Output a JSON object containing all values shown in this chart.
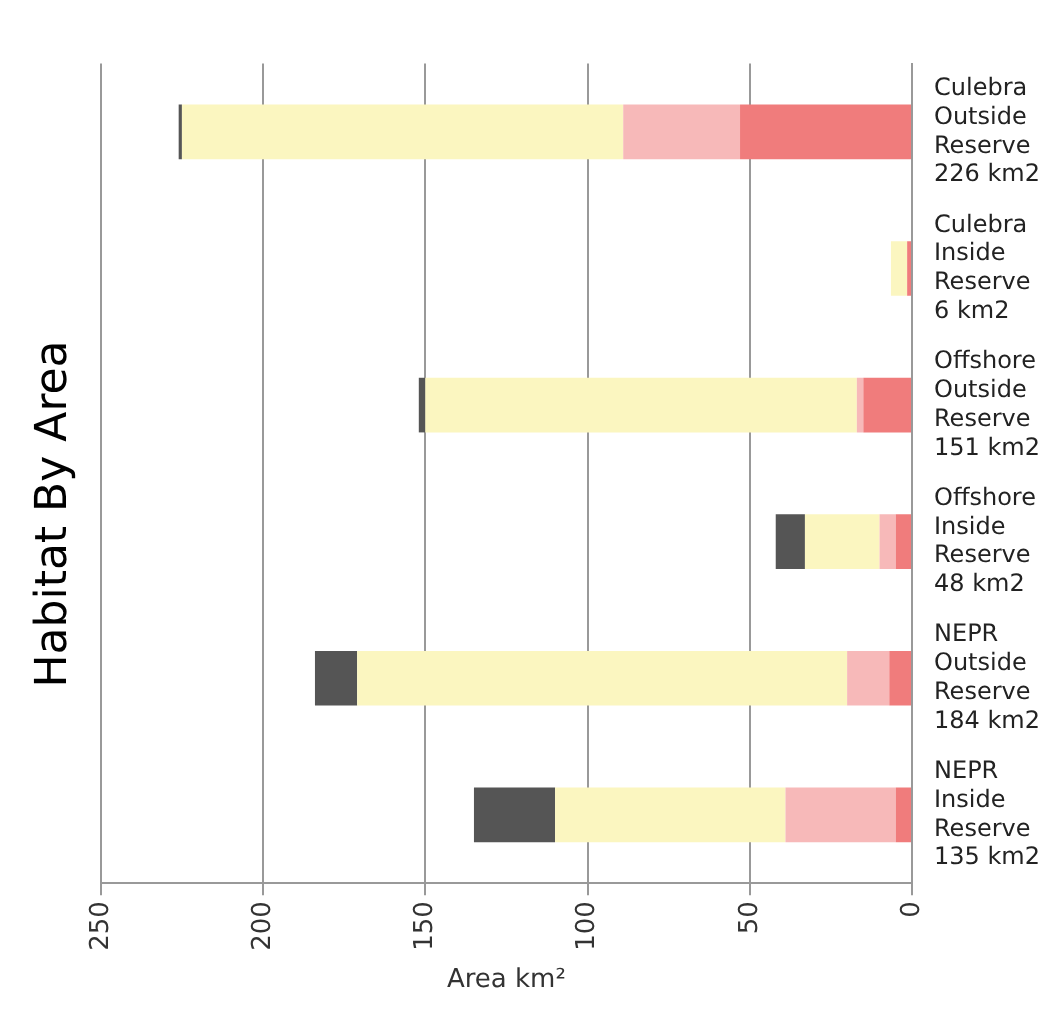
{
  "chart_data": {
    "type": "bar",
    "orientation": "horizontal",
    "stacked": true,
    "title": "Habitat By Area",
    "xlabel": "Area km²",
    "categories": [
      "Culebra Outside Reserve 226 km2",
      "Culebra Inside Reserve 6 km2",
      "Offshore Outside Reserve 151 km2",
      "Offshore Inside Reserve 48 km2",
      "NEPR Outside Reserve 184 km2",
      "NEPR Inside Reserve 135 km2"
    ],
    "series": [
      {
        "color": "#f07c7c",
        "values": [
          53,
          1.5,
          15,
          5,
          7,
          5
        ]
      },
      {
        "color": "#f7b9b9",
        "values": [
          36,
          0,
          2,
          5,
          13,
          34
        ]
      },
      {
        "color": "#fbf6c0",
        "values": [
          136,
          5,
          133,
          23,
          151,
          71
        ]
      },
      {
        "color": "#555555",
        "values": [
          1,
          0,
          2,
          9,
          13,
          25
        ]
      }
    ],
    "xlim": [
      250,
      0
    ],
    "xticks": [
      250,
      200,
      150,
      100,
      50,
      0
    ],
    "grid": "x",
    "legend": false
  }
}
